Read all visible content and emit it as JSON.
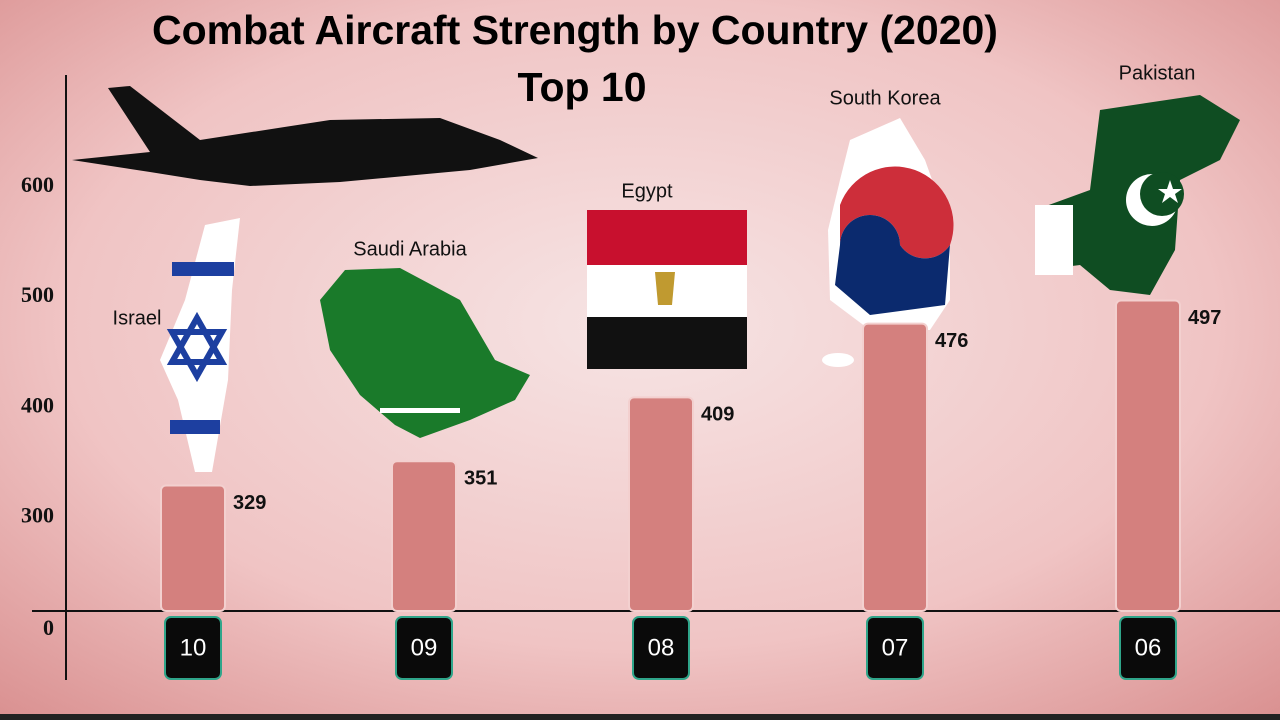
{
  "chart_data": {
    "type": "bar",
    "title": "Combat Aircraft Strength by Country (2020)",
    "subtitle": "Top 10",
    "categories": [
      "10",
      "09",
      "08",
      "07",
      "06"
    ],
    "countries": [
      "Israel",
      "Saudi Arabia",
      "Egypt",
      "South Korea",
      "Pakistan"
    ],
    "values": [
      329,
      351,
      409,
      476,
      497
    ],
    "color": "#d4807e",
    "ylim": [
      215,
      660
    ],
    "yticks": [
      0,
      300,
      400,
      500,
      600
    ],
    "axis_break": true
  }
}
